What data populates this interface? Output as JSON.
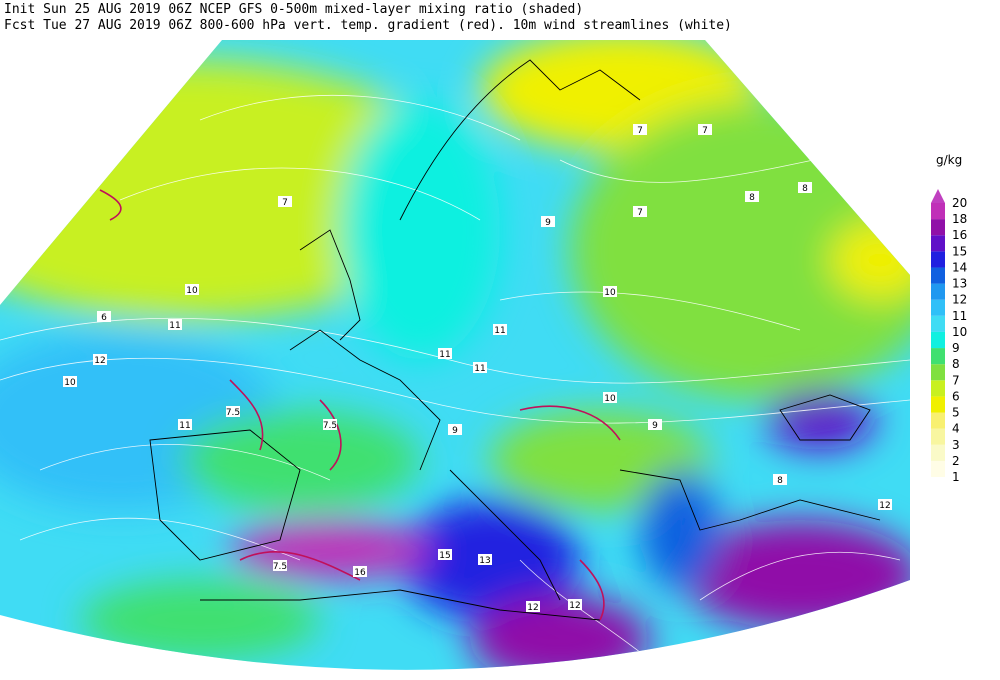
{
  "header": {
    "line1": "Init  Sun 25 AUG 2019 06Z  NCEP GFS 0-500m mixed-layer mixing ratio (shaded)",
    "line2": "Fcst Tue 27 AUG 2019 06Z  800-600 hPa vert. temp. gradient (red). 10m wind streamlines (white)"
  },
  "legend": {
    "unit": "g/kg",
    "levels": [
      1,
      2,
      3,
      4,
      5,
      6,
      7,
      8,
      9,
      10,
      11,
      12,
      13,
      14,
      15,
      16,
      18,
      20
    ],
    "colors": [
      "#fffde6",
      "#fafac8",
      "#f8f6a0",
      "#f8f070",
      "#f0f000",
      "#c8f020",
      "#80e040",
      "#40e070",
      "#10f0e0",
      "#40dcf4",
      "#30c0f8",
      "#2098f0",
      "#1060e0",
      "#2020e0",
      "#6010c8",
      "#9010a8",
      "#c030b8",
      "#c040c0"
    ]
  },
  "map": {
    "labels": [
      "7",
      "8",
      "8",
      "7",
      "10",
      "11",
      "12",
      "10",
      "9",
      "11",
      "11",
      "10",
      "7",
      "6",
      "7.5",
      "7.5",
      "9",
      "10",
      "11",
      "12",
      "13",
      "15",
      "16",
      "12",
      "7.5",
      "8",
      "11",
      "12",
      "9",
      "7"
    ]
  }
}
